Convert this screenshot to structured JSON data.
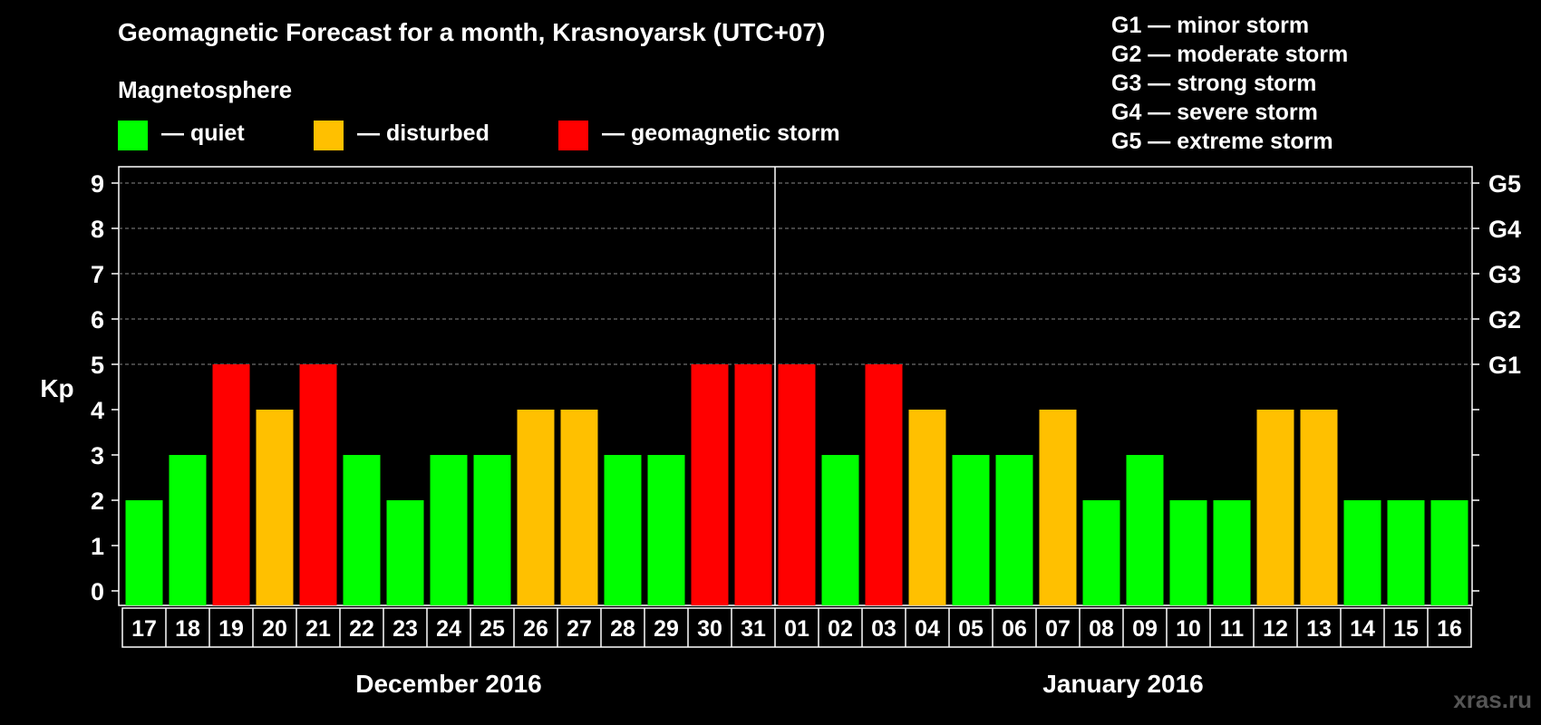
{
  "header": {
    "title": "Geomagnetic Forecast for a month, Krasnoyarsk (UTC+07)",
    "subtitle": "Magnetosphere"
  },
  "legend": [
    {
      "label": "— quiet",
      "color": "#00ff00"
    },
    {
      "label": "— disturbed",
      "color": "#ffc000"
    },
    {
      "label": "— geomagnetic storm",
      "color": "#ff0000"
    }
  ],
  "storm_scale": [
    "G1 — minor storm",
    "G2 — moderate storm",
    "G3 — strong storm",
    "G4 — severe storm",
    "G5 — extreme storm"
  ],
  "watermark": "xras.ru",
  "chart_data": {
    "type": "bar",
    "ylabel": "Kp",
    "ylim": [
      0,
      9
    ],
    "yticks": [
      0,
      1,
      2,
      3,
      4,
      5,
      6,
      7,
      8,
      9
    ],
    "right_axis_labels": [
      {
        "kp": 5,
        "label": "G1"
      },
      {
        "kp": 6,
        "label": "G2"
      },
      {
        "kp": 7,
        "label": "G3"
      },
      {
        "kp": 8,
        "label": "G4"
      },
      {
        "kp": 9,
        "label": "G5"
      }
    ],
    "grid": "dashed horizontal at Kp 5 to 9",
    "categories": [
      "17",
      "18",
      "19",
      "20",
      "21",
      "22",
      "23",
      "24",
      "25",
      "26",
      "27",
      "28",
      "29",
      "30",
      "31",
      "01",
      "02",
      "03",
      "04",
      "05",
      "06",
      "07",
      "08",
      "09",
      "10",
      "11",
      "12",
      "13",
      "14",
      "15",
      "16"
    ],
    "values": [
      2,
      3,
      5,
      4,
      5,
      3,
      2,
      3,
      3,
      4,
      4,
      3,
      3,
      5,
      5,
      5,
      3,
      5,
      4,
      3,
      3,
      4,
      2,
      3,
      2,
      2,
      4,
      4,
      2,
      2,
      2
    ],
    "months": [
      {
        "label": "December 2016",
        "from": 0,
        "to": 14
      },
      {
        "label": "January 2016",
        "from": 15,
        "to": 30
      }
    ],
    "color_rule": {
      "quiet_max": 3,
      "disturbed": 4,
      "storm_min": 5
    }
  }
}
